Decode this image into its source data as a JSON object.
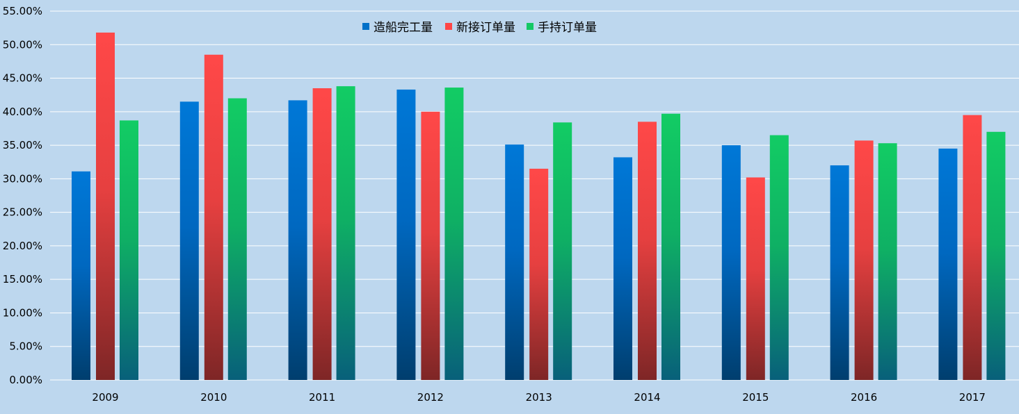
{
  "chart_data": {
    "type": "bar",
    "categories": [
      "2009",
      "2010",
      "2011",
      "2012",
      "2013",
      "2014",
      "2015",
      "2016",
      "2017"
    ],
    "series": [
      {
        "name": "造船完工量",
        "values": [
          31.1,
          41.5,
          41.7,
          43.3,
          35.1,
          33.2,
          35.0,
          32.0,
          34.5
        ],
        "color": "#0070c8"
      },
      {
        "name": "新接订单量",
        "values": [
          51.8,
          48.5,
          43.5,
          40.0,
          31.5,
          38.5,
          30.2,
          35.7,
          39.5
        ],
        "color": "#ff4646"
      },
      {
        "name": "手持订单量",
        "values": [
          38.7,
          42.0,
          43.8,
          43.6,
          38.4,
          39.7,
          36.5,
          35.3,
          37.0
        ],
        "color": "#14c864"
      }
    ],
    "ylim": [
      0,
      55
    ],
    "ytick_step": 5,
    "ytick_format": "percent_2dp",
    "grid": true,
    "legend_position": "top-center",
    "background": "#bdd7ee"
  }
}
